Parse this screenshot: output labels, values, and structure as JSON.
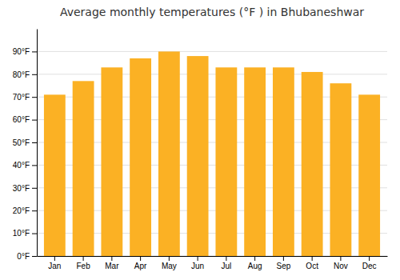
{
  "chart_data": {
    "type": "bar",
    "title": "Average monthly temperatures (°F ) in Bhubaneshwar",
    "categories": [
      "Jan",
      "Feb",
      "Mar",
      "Apr",
      "May",
      "Jun",
      "Jul",
      "Aug",
      "Sep",
      "Oct",
      "Nov",
      "Dec"
    ],
    "values": [
      71,
      77,
      83,
      87,
      90,
      88,
      83,
      83,
      83,
      81,
      76,
      71
    ],
    "color": "#FBB124",
    "ylim": [
      0,
      100
    ],
    "yticks": [
      {
        "value": 0,
        "label": "0°F"
      },
      {
        "value": 10,
        "label": "10°F"
      },
      {
        "value": 20,
        "label": "20°F"
      },
      {
        "value": 30,
        "label": "30°F"
      },
      {
        "value": 40,
        "label": "40°F"
      },
      {
        "value": 50,
        "label": "50°F"
      },
      {
        "value": 60,
        "label": "60°F"
      },
      {
        "value": 70,
        "label": "70°F"
      },
      {
        "value": 80,
        "label": "80°F"
      },
      {
        "value": 90,
        "label": "90°F"
      }
    ],
    "grid": true
  }
}
